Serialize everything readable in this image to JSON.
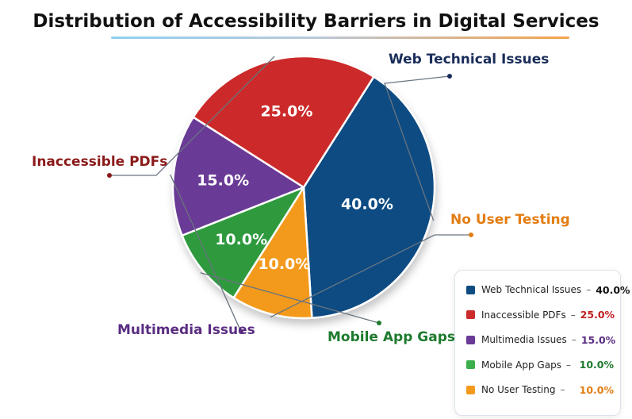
{
  "chart_data": {
    "type": "pie",
    "title": "Distribution of Accessibility Barriers in Digital Services",
    "start_angle_deg": -57.6,
    "slices": [
      {
        "label": "Web Technical Issues",
        "value": 40.0,
        "value_label": "40.0%",
        "color": "#0d4b82",
        "label_color": "#1a2d5a"
      },
      {
        "label": "No User Testing",
        "value": 10.0,
        "value_label": "10.0%",
        "color": "#f39a1c",
        "label_color": "#e27d12"
      },
      {
        "label": "Mobile App Gaps",
        "value": 10.0,
        "value_label": "10.0%",
        "color": "#2e9a3c",
        "label_color": "#1e7a2e"
      },
      {
        "label": "Multimedia Issues",
        "value": 15.0,
        "value_label": "15.0%",
        "color": "#6b3a96",
        "label_color": "#5a2d82"
      },
      {
        "label": "Inaccessible PDFs",
        "value": 25.0,
        "value_label": "25.0%",
        "color": "#cc2b2b",
        "label_color": "#8b1a1a"
      }
    ],
    "legend": [
      {
        "label": "Web Technical Issues",
        "value": "40.0%",
        "color": "#0d4b82",
        "value_color": "#111111"
      },
      {
        "label": "Inaccessible PDFs",
        "value": "25.0%",
        "color": "#cc2b2b",
        "value_color": "#c02020"
      },
      {
        "label": "Multimedia Issues",
        "value": "15.0%",
        "color": "#6b3a96",
        "value_color": "#5a2d82"
      },
      {
        "label": "Mobile App Gaps",
        "value": "10.0%",
        "color": "#3cae4a",
        "value_color": "#1e7a2e"
      },
      {
        "label": "No User Testing",
        "value": "10.0%",
        "color": "#f39a1c",
        "value_color": "#e27d12"
      }
    ],
    "legend_dash": "–"
  }
}
